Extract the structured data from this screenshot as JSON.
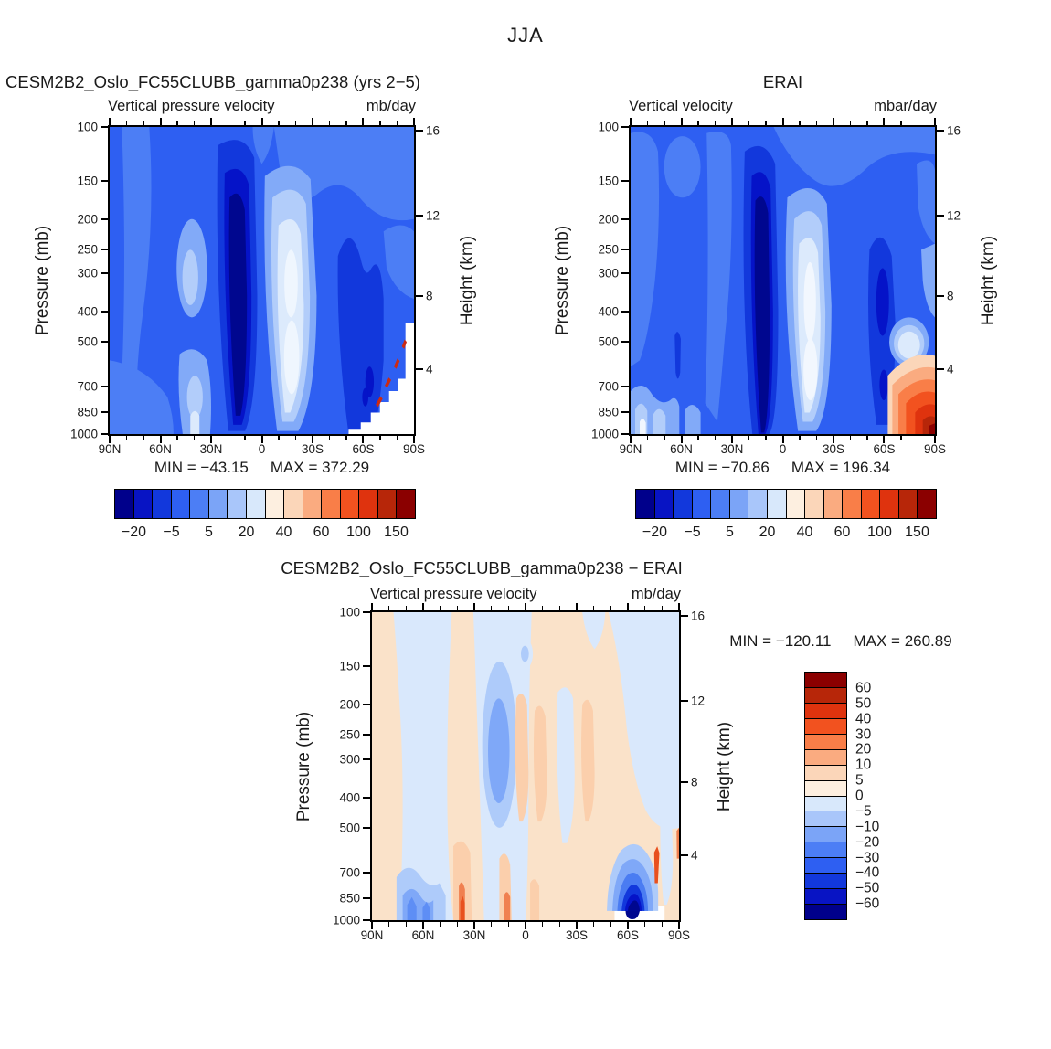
{
  "page": {
    "title": "JJA"
  },
  "shared": {
    "ylabel": "Pressure (mb)",
    "y2label": "Height (km)"
  },
  "panels": {
    "model": {
      "title": "CESM2B2_Oslo_FC55CLUBB_gamma0p238 (yrs 2−5)",
      "sub_left": "Vertical pressure velocity",
      "sub_right": "mb/day",
      "min_label": "MIN = −43.15",
      "max_label": "MAX = 372.29"
    },
    "erai": {
      "title": "ERAI",
      "sub_left": "Vertical velocity",
      "sub_right": "mbar/day",
      "min_label": "MIN = −70.86",
      "max_label": "MAX = 196.34"
    },
    "diff": {
      "title": "CESM2B2_Oslo_FC55CLUBB_gamma0p238 − ERAI",
      "sub_left": "Vertical pressure velocity",
      "sub_right": "mb/day",
      "min_label": "MIN = −120.11",
      "max_label": "MAX = 260.89"
    }
  },
  "axes": {
    "x": [
      {
        "t": "90N",
        "p": 0
      },
      {
        "t": "60N",
        "p": 16.67
      },
      {
        "t": "30N",
        "p": 33.33
      },
      {
        "t": "0",
        "p": 50
      },
      {
        "t": "30S",
        "p": 66.67
      },
      {
        "t": "60S",
        "p": 83.33
      },
      {
        "t": "90S",
        "p": 100
      }
    ],
    "y": [
      {
        "t": "100",
        "p": 0
      },
      {
        "t": "150",
        "p": 17.6
      },
      {
        "t": "200",
        "p": 30.1
      },
      {
        "t": "250",
        "p": 39.8
      },
      {
        "t": "300",
        "p": 47.7
      },
      {
        "t": "400",
        "p": 60.2
      },
      {
        "t": "500",
        "p": 69.9
      },
      {
        "t": "700",
        "p": 84.5
      },
      {
        "t": "850",
        "p": 92.9
      },
      {
        "t": "1000",
        "p": 100
      }
    ],
    "y2": [
      {
        "t": "16",
        "p": 1.3
      },
      {
        "t": "12",
        "p": 28.8
      },
      {
        "t": "8",
        "p": 55.1
      },
      {
        "t": "4",
        "p": 79.0
      }
    ]
  },
  "colorbars": {
    "colors": [
      "#00008B",
      "#0814C4",
      "#1238DC",
      "#2E5FF2",
      "#4C7EF5",
      "#7BA4F7",
      "#A9C6FA",
      "#D8E8FB",
      "#FDEFE0",
      "#FBD6B9",
      "#FAAB80",
      "#F97E48",
      "#F2521F",
      "#DF330E",
      "#B72609",
      "#8B0000"
    ],
    "h_labels": [
      {
        "t": "−20",
        "p": 6.25
      },
      {
        "t": "−5",
        "p": 18.75
      },
      {
        "t": "5",
        "p": 31.25
      },
      {
        "t": "20",
        "p": 43.75
      },
      {
        "t": "40",
        "p": 56.25
      },
      {
        "t": "60",
        "p": 68.75
      },
      {
        "t": "100",
        "p": 81.25
      },
      {
        "t": "150",
        "p": 93.75
      }
    ],
    "v_labels": [
      {
        "t": "60",
        "p": 6.25
      },
      {
        "t": "50",
        "p": 12.5
      },
      {
        "t": "40",
        "p": 18.75
      },
      {
        "t": "30",
        "p": 25
      },
      {
        "t": "20",
        "p": 31.25
      },
      {
        "t": "10",
        "p": 37.5
      },
      {
        "t": "5",
        "p": 43.75
      },
      {
        "t": "0",
        "p": 50
      },
      {
        "t": "−5",
        "p": 56.25
      },
      {
        "t": "−10",
        "p": 62.5
      },
      {
        "t": "−20",
        "p": 68.75
      },
      {
        "t": "−30",
        "p": 75
      },
      {
        "t": "−40",
        "p": 81.25
      },
      {
        "t": "−50",
        "p": 87.5
      },
      {
        "t": "−60",
        "p": 93.75
      }
    ]
  },
  "chart_data": [
    {
      "id": "model",
      "type": "heatmap",
      "season": "JJA",
      "title": "CESM2B2_Oslo_FC55CLUBB_gamma0p238 (yrs 2−5)",
      "field": "Vertical pressure velocity",
      "units": "mb/day",
      "x_ticks": [
        "90N",
        "60N",
        "30N",
        "0",
        "30S",
        "60S",
        "90S"
      ],
      "y_axis": "Pressure (mb)",
      "y_scale": "log",
      "y_ticks": [
        100,
        150,
        200,
        250,
        300,
        400,
        500,
        700,
        850,
        1000
      ],
      "y2_axis": "Height (km)",
      "y2_ticks": [
        16,
        12,
        8,
        4
      ],
      "min": -43.15,
      "max": 372.29,
      "contour_levels": [
        -20,
        -10,
        -5,
        0,
        5,
        10,
        20,
        30,
        40,
        50,
        60,
        80,
        100,
        125,
        150
      ],
      "labeled_levels": [
        -20,
        -5,
        5,
        20,
        40,
        60,
        100,
        150
      ],
      "legend_position": "bottom"
    },
    {
      "id": "erai",
      "type": "heatmap",
      "season": "JJA",
      "title": "ERAI",
      "field": "Vertical velocity",
      "units": "mbar/day",
      "x_ticks": [
        "90N",
        "60N",
        "30N",
        "0",
        "30S",
        "60S",
        "90S"
      ],
      "y_axis": "Pressure (mb)",
      "y_scale": "log",
      "y_ticks": [
        100,
        150,
        200,
        250,
        300,
        400,
        500,
        700,
        850,
        1000
      ],
      "y2_axis": "Height (km)",
      "y2_ticks": [
        16,
        12,
        8,
        4
      ],
      "min": -70.86,
      "max": 196.34,
      "contour_levels": [
        -20,
        -10,
        -5,
        0,
        5,
        10,
        20,
        30,
        40,
        50,
        60,
        80,
        100,
        125,
        150
      ],
      "labeled_levels": [
        -20,
        -5,
        5,
        20,
        40,
        60,
        100,
        150
      ],
      "legend_position": "bottom"
    },
    {
      "id": "difference",
      "type": "heatmap",
      "season": "JJA",
      "title": "CESM2B2_Oslo_FC55CLUBB_gamma0p238 − ERAI",
      "field": "Vertical pressure velocity",
      "units": "mb/day",
      "x_ticks": [
        "90N",
        "60N",
        "30N",
        "0",
        "30S",
        "60S",
        "90S"
      ],
      "y_axis": "Pressure (mb)",
      "y_scale": "log",
      "y_ticks": [
        100,
        150,
        200,
        250,
        300,
        400,
        500,
        700,
        850,
        1000
      ],
      "y2_axis": "Height (km)",
      "y2_ticks": [
        16,
        12,
        8,
        4
      ],
      "min": -120.11,
      "max": 260.89,
      "contour_levels": [
        -60,
        -50,
        -40,
        -30,
        -20,
        -10,
        -5,
        0,
        5,
        10,
        20,
        30,
        40,
        50,
        60
      ],
      "labeled_levels": [
        60,
        50,
        40,
        30,
        20,
        10,
        5,
        0,
        -5,
        -10,
        -20,
        -30,
        -40,
        -50,
        -60
      ],
      "legend_position": "right"
    }
  ]
}
